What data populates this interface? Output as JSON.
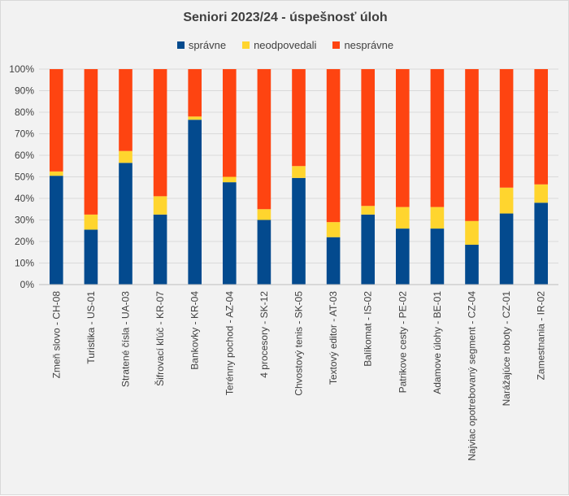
{
  "chart_data": {
    "type": "bar",
    "stacked": true,
    "title": "Seniori 2023/24 - úspešnosť úloh",
    "xlabel": "",
    "ylabel": "",
    "ylim": [
      0,
      100
    ],
    "y_tick_labels": [
      "0%",
      "10%",
      "20%",
      "30%",
      "40%",
      "50%",
      "60%",
      "70%",
      "80%",
      "90%",
      "100%"
    ],
    "grid": true,
    "legend_position": "top",
    "categories": [
      "Zmeň slovo - CH-08",
      "Turistika - US-01",
      "Stratené čísla - UA-03",
      "Šifrovací kľúč - KR-07",
      "Bankovky - KR-04",
      "Terénny pochod - AZ-04",
      "4 procesory - SK-12",
      "Chvostový tenis - SK-05",
      "Textový editor - AT-03",
      "Balíkomat - IS-02",
      "Patrikove cesty - PE-02",
      "Adamove úlohy - BE-01",
      "Najviac opotrebovaný segment - CZ-04",
      "Narážajúce roboty - CZ-01",
      "Zamestnania - IR-02"
    ],
    "series": [
      {
        "name": "správne",
        "color": "#034a8e",
        "values": [
          50.5,
          25.5,
          56.5,
          32.5,
          76.5,
          47.5,
          30,
          49.5,
          22,
          32.5,
          26,
          26,
          18.5,
          33,
          38
        ]
      },
      {
        "name": "neodpovedali",
        "color": "#ffd52e",
        "values": [
          2,
          7,
          5.5,
          8.5,
          1.5,
          2.5,
          5,
          5.5,
          7,
          4,
          10,
          10,
          11,
          12,
          8.5
        ]
      },
      {
        "name": "nesprávne",
        "color": "#fe4411",
        "values": [
          47.5,
          67.5,
          38,
          59,
          22,
          50,
          65,
          45,
          71,
          63.5,
          64,
          64,
          70.5,
          55,
          53.5
        ]
      }
    ]
  }
}
